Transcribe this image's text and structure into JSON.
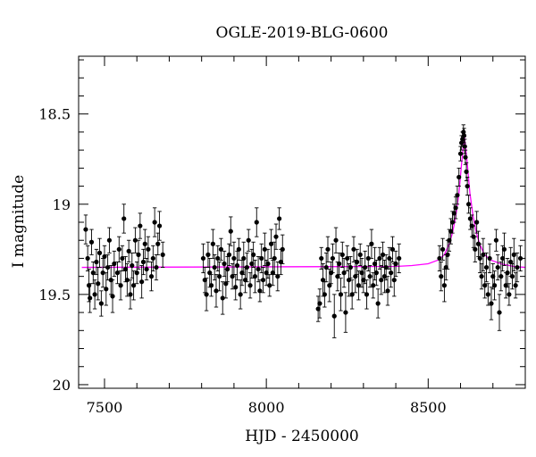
{
  "chart_data": {
    "type": "scatter",
    "title": "OGLE-2019-BLG-0600",
    "xlabel": "HJD - 2450000",
    "ylabel": "I magnitude",
    "xlim": [
      7420,
      8800
    ],
    "ylim": [
      20.02,
      18.18
    ],
    "y_inverted": true,
    "grid": false,
    "x_ticks": [
      7500,
      8000,
      8500
    ],
    "y_ticks": [
      18.5,
      19,
      19.5,
      20
    ],
    "y_tick_labels": [
      "18.5",
      "19",
      "19.5",
      "20"
    ],
    "colors": {
      "points": "#000000",
      "model": "#ff00ff"
    },
    "model": {
      "name": "microlensing model",
      "baseline_mag": 19.35,
      "peak_mag": 18.63,
      "t0": 8612,
      "x": [
        7430,
        8400,
        8450,
        8500,
        8530,
        8550,
        8565,
        8575,
        8585,
        8595,
        8603,
        8608,
        8612,
        8616,
        8621,
        8629,
        8639,
        8649,
        8659,
        8674,
        8694,
        8724,
        8764,
        8800
      ],
      "y": [
        19.35,
        19.345,
        19.34,
        19.33,
        19.31,
        19.28,
        19.22,
        19.16,
        19.07,
        18.94,
        18.78,
        18.69,
        18.63,
        18.69,
        18.78,
        18.94,
        19.07,
        19.16,
        19.22,
        19.28,
        19.31,
        19.33,
        19.345,
        19.35
      ]
    },
    "series": [
      {
        "x": [
          7442,
          7448,
          7452,
          7455,
          7460,
          7465,
          7470,
          7475,
          7480,
          7485,
          7490,
          7495,
          7500,
          7505,
          7510,
          7515,
          7520,
          7525,
          7530,
          7540,
          7545,
          7550,
          7555,
          7560,
          7565,
          7570,
          7575,
          7580,
          7585,
          7590,
          7595,
          7600,
          7605,
          7610,
          7615,
          7620,
          7625,
          7630,
          7635,
          7645,
          7650,
          7655,
          7660,
          7665,
          7670,
          7680
        ],
        "y": [
          19.14,
          19.3,
          19.45,
          19.52,
          19.21,
          19.38,
          19.5,
          19.32,
          19.44,
          19.27,
          19.55,
          19.38,
          19.29,
          19.47,
          19.35,
          19.2,
          19.42,
          19.51,
          19.33,
          19.38,
          19.25,
          19.45,
          19.3,
          19.08,
          19.36,
          19.42,
          19.26,
          19.5,
          19.34,
          19.45,
          19.2,
          19.38,
          19.28,
          19.12,
          19.43,
          19.32,
          19.22,
          19.36,
          19.25,
          19.4,
          19.3,
          19.1,
          19.35,
          19.22,
          19.12,
          19.28
        ],
        "err": [
          0.08,
          0.07,
          0.09,
          0.08,
          0.07,
          0.06,
          0.08,
          0.07,
          0.09,
          0.08,
          0.07,
          0.08,
          0.06,
          0.09,
          0.07,
          0.07,
          0.08,
          0.09,
          0.07,
          0.06,
          0.07,
          0.08,
          0.07,
          0.08,
          0.07,
          0.09,
          0.06,
          0.08,
          0.07,
          0.08,
          0.07,
          0.06,
          0.08,
          0.07,
          0.09,
          0.07,
          0.08,
          0.06,
          0.07,
          0.08,
          0.07,
          0.08,
          0.07,
          0.06,
          0.08,
          0.07
        ]
      },
      {
        "x": [
          7805,
          7810,
          7815,
          7820,
          7825,
          7830,
          7835,
          7840,
          7845,
          7850,
          7855,
          7860,
          7865,
          7870,
          7875,
          7880,
          7885,
          7890,
          7895,
          7900,
          7905,
          7910,
          7915,
          7920,
          7925,
          7930,
          7935,
          7940,
          7945,
          7950,
          7955,
          7960,
          7965,
          7970,
          7975,
          7980,
          7985,
          7990,
          7995,
          8000,
          8005,
          8010,
          8015,
          8020,
          8025,
          8030,
          8035,
          8040,
          8045,
          8050
        ],
        "y": [
          19.3,
          19.42,
          19.5,
          19.28,
          19.38,
          19.45,
          19.22,
          19.35,
          19.48,
          19.3,
          19.4,
          19.25,
          19.52,
          19.33,
          19.44,
          19.36,
          19.28,
          19.15,
          19.4,
          19.3,
          19.46,
          19.34,
          19.25,
          19.5,
          19.38,
          19.3,
          19.42,
          19.35,
          19.2,
          19.45,
          19.33,
          19.28,
          19.4,
          19.1,
          19.36,
          19.48,
          19.3,
          19.42,
          19.25,
          19.38,
          19.33,
          19.45,
          19.22,
          19.38,
          19.3,
          19.18,
          19.4,
          19.08,
          19.32,
          19.25
        ],
        "err": [
          0.08,
          0.07,
          0.09,
          0.07,
          0.08,
          0.06,
          0.08,
          0.07,
          0.09,
          0.07,
          0.08,
          0.06,
          0.09,
          0.07,
          0.08,
          0.07,
          0.06,
          0.08,
          0.07,
          0.09,
          0.07,
          0.08,
          0.06,
          0.08,
          0.07,
          0.09,
          0.07,
          0.08,
          0.06,
          0.07,
          0.08,
          0.07,
          0.09,
          0.08,
          0.07,
          0.06,
          0.08,
          0.07,
          0.09,
          0.07,
          0.08,
          0.06,
          0.08,
          0.07,
          0.09,
          0.07,
          0.08,
          0.06,
          0.07,
          0.08
        ]
      },
      {
        "x": [
          8160,
          8165,
          8170,
          8175,
          8180,
          8185,
          8190,
          8195,
          8200,
          8205,
          8210,
          8215,
          8220,
          8225,
          8230,
          8235,
          8240,
          8245,
          8250,
          8255,
          8260,
          8265,
          8270,
          8275,
          8280,
          8285,
          8290,
          8295,
          8300,
          8305,
          8310,
          8315,
          8320,
          8325,
          8330,
          8335,
          8340,
          8345,
          8350,
          8355,
          8360,
          8365,
          8370,
          8375,
          8380,
          8385,
          8390,
          8395,
          8400,
          8410
        ],
        "y": [
          19.58,
          19.55,
          19.3,
          19.42,
          19.5,
          19.35,
          19.25,
          19.45,
          19.38,
          19.3,
          19.62,
          19.2,
          19.4,
          19.33,
          19.5,
          19.28,
          19.38,
          19.6,
          19.3,
          19.42,
          19.35,
          19.5,
          19.25,
          19.4,
          19.32,
          19.45,
          19.28,
          19.38,
          19.42,
          19.35,
          19.5,
          19.3,
          19.4,
          19.22,
          19.45,
          19.33,
          19.38,
          19.55,
          19.3,
          19.42,
          19.28,
          19.4,
          19.35,
          19.48,
          19.3,
          19.38,
          19.25,
          19.42,
          19.33,
          19.3
        ],
        "err": [
          0.07,
          0.08,
          0.06,
          0.09,
          0.07,
          0.08,
          0.07,
          0.09,
          0.06,
          0.08,
          0.12,
          0.07,
          0.08,
          0.06,
          0.09,
          0.07,
          0.08,
          0.11,
          0.07,
          0.09,
          0.06,
          0.08,
          0.07,
          0.09,
          0.07,
          0.08,
          0.06,
          0.08,
          0.07,
          0.09,
          0.08,
          0.07,
          0.06,
          0.08,
          0.07,
          0.09,
          0.07,
          0.08,
          0.06,
          0.08,
          0.07,
          0.09,
          0.07,
          0.08,
          0.06,
          0.08,
          0.07,
          0.09,
          0.07,
          0.08
        ]
      },
      {
        "x": [
          8535,
          8540,
          8545,
          8550,
          8555,
          8560,
          8565,
          8570,
          8575,
          8580,
          8585,
          8590,
          8595,
          8600,
          8603,
          8606,
          8609,
          8611,
          8613,
          8615,
          8618,
          8621,
          8625,
          8630,
          8635,
          8640,
          8645,
          8650,
          8655,
          8660,
          8665,
          8670,
          8675,
          8680,
          8685,
          8690,
          8695,
          8700,
          8705,
          8710,
          8715,
          8720,
          8725,
          8730,
          8735,
          8740,
          8745,
          8750,
          8755,
          8760,
          8765,
          8770,
          8775,
          8785
        ],
        "y": [
          19.3,
          19.4,
          19.25,
          19.45,
          19.35,
          19.28,
          19.2,
          19.15,
          19.1,
          19.05,
          19.02,
          18.95,
          18.85,
          18.72,
          18.66,
          18.64,
          18.6,
          18.62,
          18.68,
          18.74,
          18.82,
          18.9,
          19.0,
          19.08,
          19.12,
          19.18,
          19.25,
          19.1,
          19.22,
          19.3,
          19.4,
          19.28,
          19.45,
          19.35,
          19.5,
          19.3,
          19.55,
          19.4,
          19.45,
          19.2,
          19.35,
          19.6,
          19.4,
          19.3,
          19.25,
          19.45,
          19.38,
          19.5,
          19.32,
          19.4,
          19.28,
          19.45,
          19.35,
          19.3
        ],
        "err": [
          0.07,
          0.08,
          0.06,
          0.09,
          0.07,
          0.08,
          0.06,
          0.07,
          0.06,
          0.05,
          0.06,
          0.05,
          0.05,
          0.04,
          0.04,
          0.04,
          0.04,
          0.04,
          0.04,
          0.04,
          0.05,
          0.05,
          0.05,
          0.06,
          0.06,
          0.06,
          0.07,
          0.06,
          0.07,
          0.08,
          0.07,
          0.09,
          0.07,
          0.08,
          0.06,
          0.08,
          0.09,
          0.07,
          0.08,
          0.06,
          0.07,
          0.1,
          0.08,
          0.07,
          0.09,
          0.07,
          0.08,
          0.06,
          0.08,
          0.07,
          0.09,
          0.07,
          0.08,
          0.07
        ]
      }
    ]
  }
}
